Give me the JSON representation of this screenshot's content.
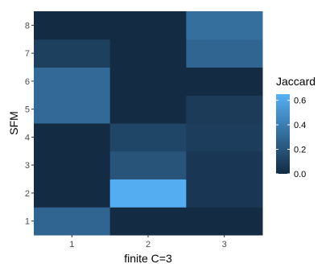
{
  "chart_data": {
    "type": "heatmap",
    "xlabel": "finite C=3",
    "ylabel": "SFM",
    "x_categories": [
      "1",
      "2",
      "3"
    ],
    "y_categories": [
      "1",
      "2",
      "3",
      "4",
      "5",
      "6",
      "7",
      "8"
    ],
    "values": [
      [
        0.28,
        0.0,
        0.0
      ],
      [
        0.0,
        0.63,
        0.06
      ],
      [
        0.0,
        0.2,
        0.06
      ],
      [
        0.0,
        0.13,
        0.09
      ],
      [
        0.3,
        0.0,
        0.08
      ],
      [
        0.3,
        0.0,
        0.0
      ],
      [
        0.1,
        0.0,
        0.28
      ],
      [
        0.0,
        0.0,
        0.33
      ]
    ],
    "legend": {
      "title": "Jaccard",
      "ticks": [
        0.0,
        0.2,
        0.4,
        0.6
      ],
      "tick_labels": [
        "0.0",
        "0.2",
        "0.4",
        "0.6"
      ],
      "range": [
        0.0,
        0.65
      ],
      "placement": "right"
    },
    "color_low": "#132B43",
    "color_high": "#56B1F7"
  }
}
